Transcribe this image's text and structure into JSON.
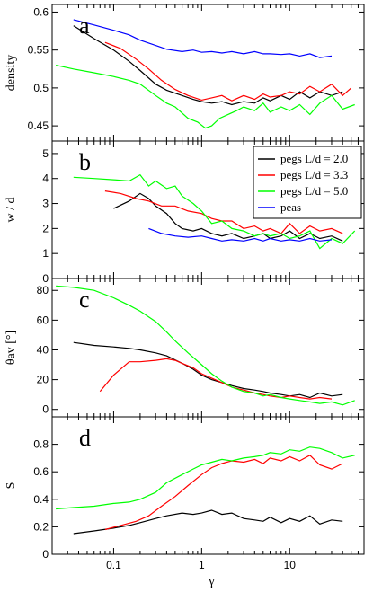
{
  "chart_data": {
    "type": "line",
    "x_axis": {
      "label": "γ",
      "scale": "log",
      "range": [
        0.02,
        70
      ],
      "ticks": [
        0.1,
        1,
        10
      ],
      "tick_labels": [
        "0.1",
        "1",
        "10"
      ]
    },
    "legend": {
      "placement": "top-right of panel b",
      "entries": [
        {
          "name": "pegs L/d = 2.0",
          "color": "#000000"
        },
        {
          "name": "pegs L/d = 3.3",
          "color": "#ff0000"
        },
        {
          "name": "pegs L/d = 5.0",
          "color": "#00ff00"
        },
        {
          "name": "peas",
          "color": "#0000ff"
        }
      ]
    },
    "panels": [
      {
        "letter": "a",
        "ylabel": "density",
        "ylim": [
          0.43,
          0.61
        ],
        "yticks": [
          0.45,
          0.5,
          0.55,
          0.6
        ],
        "ytick_labels": [
          "0.45",
          "0.5",
          "0.55",
          "0.6"
        ],
        "series": [
          {
            "color": "#000000",
            "x": [
              0.035,
              0.06,
              0.1,
              0.15,
              0.2,
              0.3,
              0.4,
              0.6,
              0.8,
              1.0,
              1.3,
              1.7,
              2.2,
              3,
              4,
              5,
              6,
              8,
              10,
              13,
              17,
              22,
              30,
              40
            ],
            "y": [
              0.582,
              0.565,
              0.55,
              0.535,
              0.523,
              0.505,
              0.497,
              0.49,
              0.485,
              0.482,
              0.48,
              0.482,
              0.478,
              0.482,
              0.48,
              0.487,
              0.483,
              0.49,
              0.485,
              0.495,
              0.487,
              0.495,
              0.49,
              0.495
            ]
          },
          {
            "color": "#ff0000",
            "x": [
              0.08,
              0.12,
              0.18,
              0.25,
              0.35,
              0.5,
              0.7,
              1.0,
              1.3,
              1.7,
              2.2,
              3,
              4,
              5,
              6,
              8,
              10,
              13,
              17,
              22,
              30,
              40,
              50
            ],
            "y": [
              0.56,
              0.552,
              0.538,
              0.525,
              0.51,
              0.498,
              0.49,
              0.484,
              0.487,
              0.49,
              0.483,
              0.49,
              0.485,
              0.492,
              0.488,
              0.49,
              0.495,
              0.492,
              0.502,
              0.495,
              0.505,
              0.49,
              0.5
            ]
          },
          {
            "color": "#00ff00",
            "x": [
              0.022,
              0.035,
              0.06,
              0.1,
              0.15,
              0.2,
              0.3,
              0.4,
              0.5,
              0.7,
              0.9,
              1.1,
              1.3,
              1.6,
              2.0,
              2.5,
              3,
              4,
              5,
              6,
              8,
              10,
              13,
              17,
              22,
              30,
              40,
              55
            ],
            "y": [
              0.53,
              0.525,
              0.52,
              0.515,
              0.51,
              0.505,
              0.49,
              0.48,
              0.475,
              0.46,
              0.455,
              0.447,
              0.45,
              0.46,
              0.465,
              0.47,
              0.475,
              0.47,
              0.48,
              0.468,
              0.475,
              0.47,
              0.478,
              0.465,
              0.48,
              0.49,
              0.472,
              0.478
            ]
          },
          {
            "color": "#0000ff",
            "x": [
              0.035,
              0.06,
              0.1,
              0.15,
              0.2,
              0.3,
              0.4,
              0.6,
              0.8,
              1.0,
              1.3,
              1.7,
              2.2,
              3,
              4,
              5,
              6,
              8,
              10,
              13,
              17,
              22,
              30
            ],
            "y": [
              0.59,
              0.583,
              0.576,
              0.57,
              0.563,
              0.556,
              0.551,
              0.548,
              0.55,
              0.547,
              0.548,
              0.546,
              0.548,
              0.545,
              0.548,
              0.545,
              0.545,
              0.544,
              0.545,
              0.542,
              0.545,
              0.54,
              0.542
            ]
          }
        ]
      },
      {
        "letter": "b",
        "ylabel": "w / d",
        "ylim": [
          0,
          5.5
        ],
        "yticks": [
          0,
          1,
          2,
          3,
          4,
          5
        ],
        "ytick_labels": [
          "0",
          "1",
          "2",
          "3",
          "4",
          "5"
        ],
        "series": [
          {
            "color": "#000000",
            "x": [
              0.1,
              0.15,
              0.2,
              0.25,
              0.3,
              0.4,
              0.5,
              0.6,
              0.8,
              1.0,
              1.3,
              1.7,
              2.2,
              3,
              4,
              5,
              6,
              8,
              10,
              13,
              17,
              22,
              30,
              40
            ],
            "y": [
              2.8,
              3.1,
              3.4,
              3.2,
              2.9,
              2.6,
              2.2,
              2.0,
              1.9,
              2.0,
              1.8,
              1.7,
              1.8,
              1.6,
              1.7,
              1.8,
              1.6,
              1.7,
              1.9,
              1.6,
              1.8,
              1.6,
              1.7,
              1.5
            ]
          },
          {
            "color": "#ff0000",
            "x": [
              0.08,
              0.12,
              0.18,
              0.25,
              0.35,
              0.5,
              0.7,
              1.0,
              1.3,
              1.7,
              2.2,
              3,
              4,
              5,
              6,
              8,
              10,
              13,
              17,
              22,
              30,
              40
            ],
            "y": [
              3.5,
              3.4,
              3.2,
              3.1,
              2.9,
              2.9,
              2.7,
              2.6,
              2.4,
              2.3,
              2.3,
              2.0,
              2.1,
              1.9,
              2.0,
              1.8,
              2.2,
              1.8,
              2.1,
              1.9,
              2.0,
              1.8
            ]
          },
          {
            "color": "#00ff00",
            "x": [
              0.035,
              0.06,
              0.1,
              0.15,
              0.2,
              0.25,
              0.3,
              0.4,
              0.5,
              0.6,
              0.8,
              1.0,
              1.3,
              1.7,
              2.2,
              3,
              4,
              5,
              6,
              8,
              10,
              13,
              17,
              22,
              30,
              40,
              55
            ],
            "y": [
              4.05,
              4.0,
              3.95,
              3.9,
              4.15,
              3.7,
              3.9,
              3.6,
              3.7,
              3.3,
              3.0,
              2.7,
              2.2,
              2.3,
              2.0,
              1.9,
              1.7,
              1.8,
              1.7,
              1.8,
              1.6,
              1.7,
              1.9,
              1.2,
              1.6,
              1.4,
              1.9
            ]
          },
          {
            "color": "#0000ff",
            "x": [
              0.25,
              0.35,
              0.5,
              0.7,
              1.0,
              1.3,
              1.7,
              2.2,
              3,
              4,
              5,
              6,
              8,
              10,
              13,
              17,
              22,
              30
            ],
            "y": [
              2.0,
              1.8,
              1.7,
              1.65,
              1.7,
              1.6,
              1.5,
              1.55,
              1.5,
              1.6,
              1.5,
              1.6,
              1.5,
              1.55,
              1.5,
              1.6,
              1.5,
              1.55
            ]
          }
        ]
      },
      {
        "letter": "c",
        "ylabel": "θav [°]",
        "ylim": [
          -5,
          88
        ],
        "yticks": [
          0,
          20,
          40,
          60,
          80
        ],
        "ytick_labels": [
          "0",
          "20",
          "40",
          "60",
          "80"
        ],
        "series": [
          {
            "color": "#000000",
            "x": [
              0.035,
              0.06,
              0.1,
              0.15,
              0.2,
              0.3,
              0.4,
              0.6,
              0.8,
              1.0,
              1.3,
              1.7,
              2.2,
              3,
              4,
              5,
              6,
              8,
              10,
              13,
              17,
              22,
              30,
              40
            ],
            "y": [
              45,
              43,
              42,
              41,
              40,
              38,
              36,
              31,
              27,
              23,
              20,
              18,
              16,
              14,
              13,
              12,
              11,
              10,
              9,
              10,
              8,
              11,
              9,
              10
            ]
          },
          {
            "color": "#ff0000",
            "x": [
              0.07,
              0.1,
              0.15,
              0.2,
              0.3,
              0.4,
              0.5,
              0.6,
              0.8,
              1.0,
              1.3,
              1.7,
              2.2,
              3,
              4,
              5,
              6,
              8,
              10,
              13,
              17,
              22,
              30
            ],
            "y": [
              12,
              23,
              32,
              32,
              33,
              34,
              33,
              31,
              28,
              24,
              21,
              18,
              15,
              13,
              11,
              10,
              9,
              8,
              9,
              8,
              7,
              8,
              7
            ]
          },
          {
            "color": "#00ff00",
            "x": [
              0.022,
              0.035,
              0.06,
              0.1,
              0.15,
              0.2,
              0.3,
              0.4,
              0.5,
              0.7,
              1.0,
              1.3,
              1.7,
              2.2,
              3,
              4,
              5,
              6,
              8,
              10,
              13,
              17,
              22,
              30,
              40,
              55
            ],
            "y": [
              83,
              82,
              80,
              75,
              70,
              66,
              59,
              52,
              46,
              38,
              30,
              24,
              19,
              15,
              12,
              11,
              9,
              10,
              8,
              7,
              6,
              5,
              4,
              5,
              3,
              6
            ]
          }
        ]
      },
      {
        "letter": "d",
        "ylabel": "S",
        "ylim": [
          0,
          1.0
        ],
        "yticks": [
          0,
          0.2,
          0.4,
          0.6,
          0.8
        ],
        "ytick_labels": [
          "0",
          "0.2",
          "0.4",
          "0.6",
          "0.8"
        ],
        "series": [
          {
            "color": "#000000",
            "x": [
              0.035,
              0.06,
              0.1,
              0.15,
              0.2,
              0.3,
              0.4,
              0.6,
              0.8,
              1.0,
              1.3,
              1.7,
              2.2,
              3,
              4,
              5,
              6,
              8,
              10,
              13,
              17,
              22,
              30,
              40
            ],
            "y": [
              0.15,
              0.17,
              0.19,
              0.21,
              0.23,
              0.26,
              0.28,
              0.3,
              0.29,
              0.3,
              0.32,
              0.29,
              0.3,
              0.26,
              0.25,
              0.24,
              0.27,
              0.23,
              0.26,
              0.24,
              0.28,
              0.22,
              0.25,
              0.24
            ]
          },
          {
            "color": "#ff0000",
            "x": [
              0.08,
              0.12,
              0.18,
              0.25,
              0.35,
              0.5,
              0.7,
              1.0,
              1.3,
              1.7,
              2.2,
              3,
              4,
              5,
              6,
              8,
              10,
              13,
              17,
              22,
              30,
              40
            ],
            "y": [
              0.18,
              0.21,
              0.24,
              0.28,
              0.35,
              0.42,
              0.5,
              0.58,
              0.63,
              0.66,
              0.68,
              0.67,
              0.69,
              0.66,
              0.7,
              0.68,
              0.71,
              0.68,
              0.72,
              0.65,
              0.62,
              0.66
            ]
          },
          {
            "color": "#00ff00",
            "x": [
              0.022,
              0.035,
              0.06,
              0.1,
              0.15,
              0.2,
              0.3,
              0.4,
              0.6,
              0.8,
              1.0,
              1.3,
              1.7,
              2.2,
              3,
              4,
              5,
              6,
              8,
              10,
              13,
              17,
              22,
              30,
              40,
              55
            ],
            "y": [
              0.33,
              0.34,
              0.35,
              0.37,
              0.38,
              0.4,
              0.45,
              0.52,
              0.58,
              0.62,
              0.65,
              0.67,
              0.69,
              0.68,
              0.7,
              0.71,
              0.72,
              0.74,
              0.73,
              0.76,
              0.75,
              0.78,
              0.77,
              0.74,
              0.7,
              0.72
            ]
          }
        ]
      }
    ]
  }
}
